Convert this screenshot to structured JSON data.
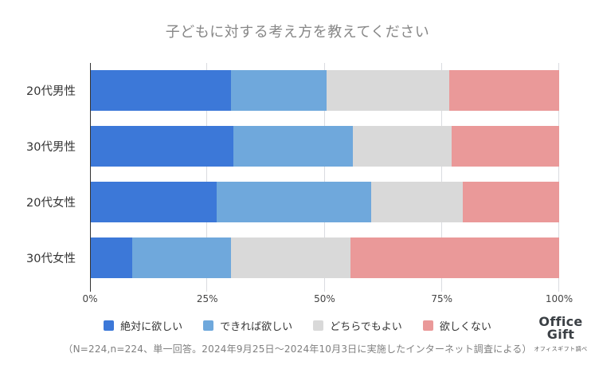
{
  "title": "子どもに対する考え方を教えてください",
  "chart_data": {
    "type": "bar",
    "variant": "horizontal-stacked-100",
    "title": "子どもに対する考え方を教えてください",
    "categories": [
      "20代男性",
      "30代男性",
      "20代女性",
      "30代女性"
    ],
    "series": [
      {
        "name": "絶対に欲しい",
        "color": "#3c78d8",
        "values": [
          30.0,
          30.5,
          27.0,
          9.0
        ]
      },
      {
        "name": "できれば欲しい",
        "color": "#6fa8dc",
        "values": [
          20.5,
          25.5,
          33.0,
          21.0
        ]
      },
      {
        "name": "どちらでもよい",
        "color": "#d9d9d9",
        "values": [
          26.0,
          21.0,
          19.5,
          25.5
        ]
      },
      {
        "name": "欲しくない",
        "color": "#ea9999",
        "values": [
          23.5,
          23.0,
          20.5,
          44.5
        ]
      }
    ],
    "x_ticks": [
      {
        "label": "0%",
        "value": 0
      },
      {
        "label": "25%",
        "value": 25
      },
      {
        "label": "50%",
        "value": 50
      },
      {
        "label": "75%",
        "value": 75
      },
      {
        "label": "100%",
        "value": 100
      }
    ],
    "xlim": [
      0,
      100
    ],
    "grid": "vertical",
    "legend_position": "bottom"
  },
  "footnote": "（N=224,n=224、単一回答。2024年9月25日〜2024年10月3日に実施したインターネット調査による）",
  "logo": {
    "line1": "Office",
    "line2": "Gift",
    "tagline": "オフィスギフト調べ"
  }
}
